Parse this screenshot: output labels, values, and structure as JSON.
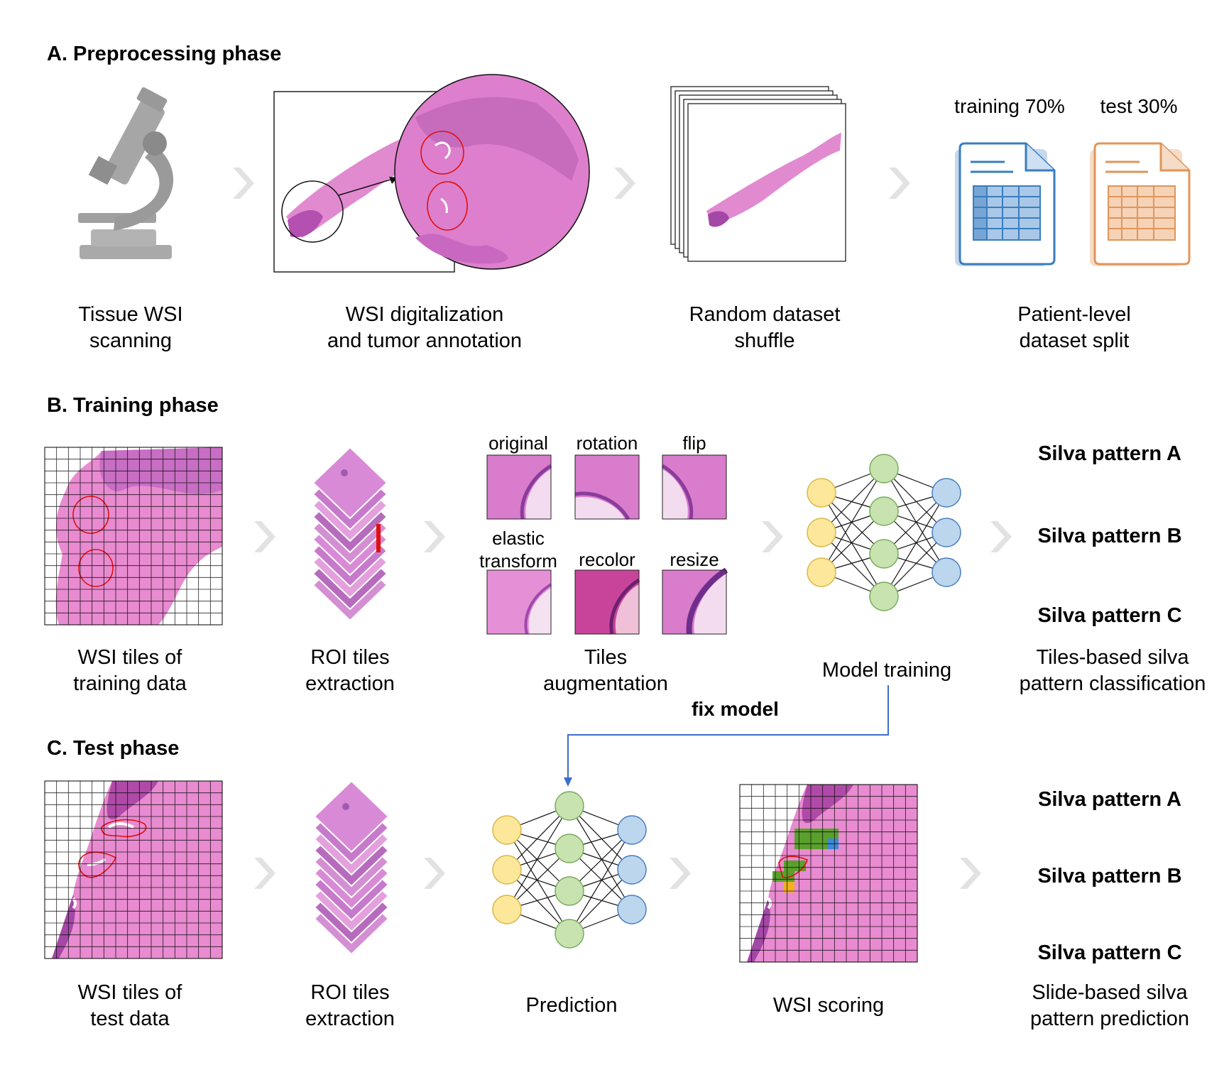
{
  "sections": {
    "a_title": "A. Preprocessing phase",
    "b_title": "B. Training phase",
    "c_title": "C. Test phase"
  },
  "preprocessing": {
    "steps": [
      {
        "caption": "Tissue WSI\nscanning"
      },
      {
        "caption": "WSI digitalization\nand tumor annotation"
      },
      {
        "caption": "Random dataset\nshuffle"
      },
      {
        "caption": "Patient-level\ndataset split"
      }
    ],
    "split": {
      "training_label": "training 70%",
      "test_label": "test 30%",
      "training_color": "#3a7dbf",
      "test_color": "#e0955a"
    }
  },
  "training": {
    "captions": {
      "wsi_tiles": "WSI tiles of\ntraining data",
      "roi": "ROI tiles\nextraction",
      "augment": "Tiles\naugmentation",
      "model": "Model training",
      "classification": "Tiles-based silva\npattern classification"
    },
    "augment_labels": [
      "original",
      "rotation",
      "flip",
      "elastic\ntransform",
      "recolor",
      "resize"
    ],
    "patterns": [
      "Silva pattern A",
      "Silva pattern B",
      "Silva pattern C"
    ]
  },
  "link": {
    "label": "fix model",
    "color": "#3b6fc9"
  },
  "test": {
    "captions": {
      "wsi_tiles": "WSI tiles of\ntest data",
      "roi": "ROI tiles\nextraction",
      "prediction": "Prediction",
      "scoring": "WSI scoring",
      "prediction_out": "Slide-based silva\npattern prediction"
    },
    "patterns": [
      "Silva pattern A",
      "Silva pattern B",
      "Silva pattern C"
    ]
  },
  "colors": {
    "arrow": "#e2e2e2",
    "tissue": "#e080c8",
    "tissue_dark": "#b04aa8",
    "annotation": "#e01010",
    "node_yellow": "#fde79a",
    "node_green": "#c8e2b0",
    "node_blue": "#bcd6ee",
    "score_green": "#5aa02c",
    "score_blue": "#3a8ad8",
    "score_orange": "#f0b020"
  }
}
